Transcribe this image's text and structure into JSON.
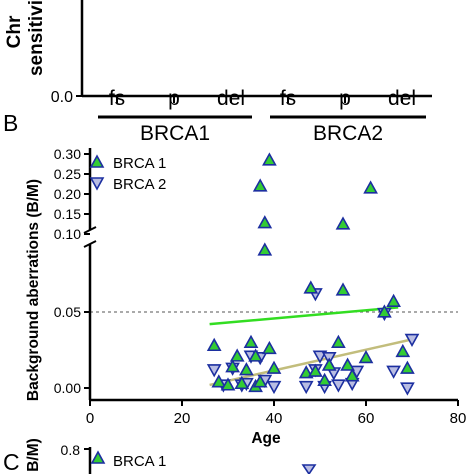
{
  "panel_a_fragment": {
    "ylabel_lines": [
      "Chr",
      "sensitivi"
    ],
    "y_tick": "0.0",
    "categories": [
      "fs",
      "p",
      "del",
      "fs",
      "p",
      "del"
    ],
    "groups": [
      "BRCA1",
      "BRCA2"
    ]
  },
  "panel_b": {
    "label": "B",
    "ylabel": "Background aberrations (B/M)",
    "xlabel": "Age",
    "y_ticks_upper": [
      "0.30",
      "0.25",
      "0.20",
      "0.15",
      "0.10"
    ],
    "y_ticks_lower": [
      "0.05",
      "0.00"
    ],
    "x_ticks": [
      "0",
      "20",
      "40",
      "60",
      "80"
    ],
    "legend": [
      "BRCA 1",
      "BRCA 2"
    ]
  },
  "panel_c_fragment": {
    "label": "C",
    "ylabel_fragment": "B/M)",
    "y_tick": "0.8",
    "legend": [
      "BRCA 1"
    ]
  },
  "colors": {
    "brca1_fill": "#33cc33",
    "brca1_edge": "#1c2fa0",
    "brca2_fill": "#b9bde3",
    "brca2_edge": "#1c2fa0",
    "brca1_fit": "#33dd22",
    "brca2_fit": "#c2bd7c",
    "reference_line": "#555555"
  },
  "chart_data": {
    "type": "scatter",
    "title": "",
    "xlabel": "Age",
    "ylabel": "Background aberrations (B/M)",
    "xlim": [
      0,
      80
    ],
    "ylim": [
      0,
      0.3
    ],
    "y_axis_break": [
      0.065,
      0.095
    ],
    "reference_line_y": 0.05,
    "legend_position": "top-left",
    "series": [
      {
        "name": "BRCA 1",
        "marker": "triangle-up",
        "points": [
          [
            27,
            0.028
          ],
          [
            28,
            0.004
          ],
          [
            30,
            0.002
          ],
          [
            31,
            0.014
          ],
          [
            32,
            0.021
          ],
          [
            33,
            0.003
          ],
          [
            34,
            0.012
          ],
          [
            35,
            0.03
          ],
          [
            36,
            0.001
          ],
          [
            36,
            0.021
          ],
          [
            37,
            0.004
          ],
          [
            37,
            0.22
          ],
          [
            38,
            0.09
          ],
          [
            38,
            0.128
          ],
          [
            39,
            0.285
          ],
          [
            39,
            0.026
          ],
          [
            40,
            0.013
          ],
          [
            47,
            0.01
          ],
          [
            48,
            0.071
          ],
          [
            49,
            0.011
          ],
          [
            51,
            0.005
          ],
          [
            52,
            0.015
          ],
          [
            54,
            0.03
          ],
          [
            55,
            0.125
          ],
          [
            55,
            0.07
          ],
          [
            56,
            0.015
          ],
          [
            57,
            0.008
          ],
          [
            60,
            0.02
          ],
          [
            61,
            0.215
          ],
          [
            64,
            0.05
          ],
          [
            66,
            0.057
          ],
          [
            68,
            0.024
          ],
          [
            69,
            0.013
          ]
        ],
        "trend": [
          [
            26,
            0.042
          ],
          [
            67,
            0.053
          ]
        ]
      },
      {
        "name": "BRCA 2",
        "marker": "triangle-down",
        "points": [
          [
            27,
            0.012
          ],
          [
            29,
            0.002
          ],
          [
            31,
            0.013
          ],
          [
            33,
            0.002
          ],
          [
            34,
            0.003
          ],
          [
            35,
            0.021
          ],
          [
            37,
            0.02
          ],
          [
            38,
            0.005
          ],
          [
            40,
            0.001
          ],
          [
            47,
            0.001
          ],
          [
            49,
            0.012
          ],
          [
            49,
            0.062
          ],
          [
            50,
            0.021
          ],
          [
            51,
            0.001
          ],
          [
            52,
            0.02
          ],
          [
            53,
            0.01
          ],
          [
            54,
            0.002
          ],
          [
            57,
            0.003
          ],
          [
            58,
            0.011
          ],
          [
            64,
            0.049
          ],
          [
            66,
            0.011
          ],
          [
            69,
            0.0
          ],
          [
            70,
            0.032
          ]
        ],
        "trend": [
          [
            26,
            0.002
          ],
          [
            70,
            0.032
          ]
        ]
      }
    ]
  }
}
